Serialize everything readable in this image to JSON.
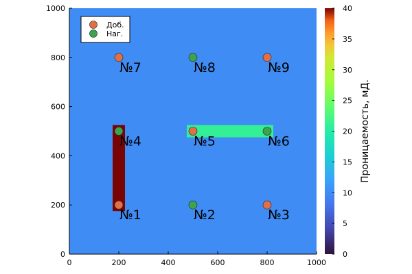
{
  "chart_data": {
    "type": "heatmap",
    "title": "",
    "xlabel": "",
    "ylabel": "",
    "xlim": [
      0,
      1000
    ],
    "ylim": [
      0,
      1000
    ],
    "x_ticks": [
      "0",
      "200",
      "400",
      "600",
      "800",
      "1000"
    ],
    "y_ticks": [
      "0",
      "200",
      "400",
      "600",
      "800",
      "1000"
    ],
    "grid": false,
    "background_value": 10,
    "zones": [
      {
        "x_range": [
          175,
          225
        ],
        "y_range": [
          175,
          525
        ],
        "value": 40
      },
      {
        "x_range": [
          475,
          825
        ],
        "y_range": [
          475,
          525
        ],
        "value": 21
      }
    ],
    "series": [
      {
        "name": "Доб.",
        "color": "#e26f46",
        "x": [
          200,
          800,
          500,
          200,
          800
        ],
        "y": [
          800,
          800,
          500,
          200,
          200
        ]
      },
      {
        "name": "Наг.",
        "color": "#3da44d",
        "x": [
          500,
          200,
          800,
          500
        ],
        "y": [
          800,
          500,
          500,
          200
        ]
      }
    ],
    "well_labels": [
      {
        "text": "№1",
        "x": 200,
        "y": 200
      },
      {
        "text": "№2",
        "x": 500,
        "y": 200
      },
      {
        "text": "№3",
        "x": 800,
        "y": 200
      },
      {
        "text": "№4",
        "x": 200,
        "y": 500
      },
      {
        "text": "№5",
        "x": 500,
        "y": 500
      },
      {
        "text": "№6",
        "x": 800,
        "y": 500
      },
      {
        "text": "№7",
        "x": 200,
        "y": 800
      },
      {
        "text": "№8",
        "x": 500,
        "y": 800
      },
      {
        "text": "№9",
        "x": 800,
        "y": 800
      }
    ],
    "legend_position": "top-left",
    "colorbar": {
      "label": "Проницаемость, мД.",
      "colormap": "turbo",
      "range": [
        0,
        40
      ],
      "ticks": [
        "0",
        "5",
        "10",
        "15",
        "20",
        "25",
        "30",
        "35",
        "40"
      ]
    }
  }
}
